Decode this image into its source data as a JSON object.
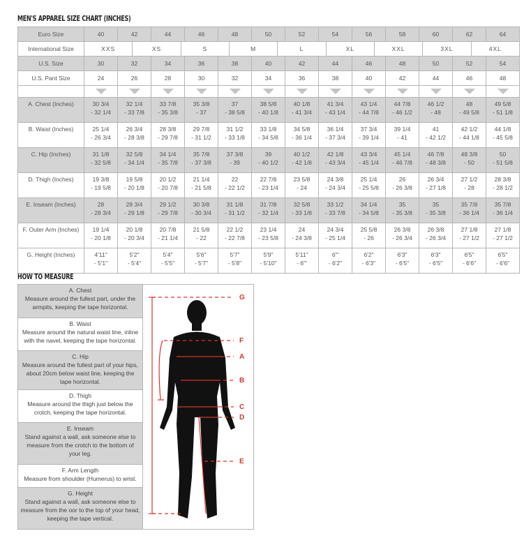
{
  "size_chart": {
    "title": "MEN'S APPAREL SIZE CHART (INCHES)",
    "euro": {
      "label": "Euro Size",
      "values": [
        "40",
        "42",
        "44",
        "46",
        "48",
        "50",
        "52",
        "54",
        "56",
        "58",
        "60",
        "62",
        "64"
      ]
    },
    "international": {
      "label": "International Size",
      "values": [
        "XXS",
        "XS",
        "S",
        "M",
        "L",
        "XL",
        "XXL",
        "3XL",
        "4XL"
      ]
    },
    "us": {
      "label": "U.S. Size",
      "values": [
        "30",
        "32",
        "34",
        "36",
        "38",
        "40",
        "42",
        "44",
        "46",
        "48",
        "50",
        "52",
        "54"
      ]
    },
    "us_pant": {
      "label": "U.S. Pant Size",
      "values": [
        "24",
        "26",
        "28",
        "30",
        "32",
        "34",
        "36",
        "38",
        "40",
        "42",
        "44",
        "46",
        "48"
      ]
    },
    "measurements": [
      {
        "label": "A. Chest (Inches)",
        "values": [
          [
            "30 3/4",
            "- 32 1/4"
          ],
          [
            "32 1/4",
            "- 33 7/8"
          ],
          [
            "33 7/8",
            "- 35 3/8"
          ],
          [
            "35 3/8",
            "- 37"
          ],
          [
            "37",
            "- 38 5/8"
          ],
          [
            "38 5/8",
            "- 40 1/8"
          ],
          [
            "40 1/8",
            "- 41 3/4"
          ],
          [
            "41 3/4",
            "- 43 1/4"
          ],
          [
            "43 1/4",
            "- 44 7/8"
          ],
          [
            "44 7/8",
            "- 46 1/2"
          ],
          [
            "46 1/2",
            "- 48"
          ],
          [
            "48",
            "- 49 5/8"
          ],
          [
            "49 5/8",
            "- 51 1/8"
          ]
        ]
      },
      {
        "label": "B. Waist (Inches)",
        "values": [
          [
            "25 1/4",
            "- 26 3/4"
          ],
          [
            "26 3/4",
            "- 28 3/8"
          ],
          [
            "28 3/8",
            "- 29 7/8"
          ],
          [
            "29 7/8",
            "- 31 1/2"
          ],
          [
            "31 1/2",
            "- 33 1/8"
          ],
          [
            "33 1/8",
            "- 34 5/8"
          ],
          [
            "34 5/8",
            "- 36 1/4"
          ],
          [
            "36 1/4",
            "- 37 3/4"
          ],
          [
            "37 3/4",
            "- 39 1/4"
          ],
          [
            "39 1/4",
            "- 41"
          ],
          [
            "41",
            "- 42 1/2"
          ],
          [
            "42 1/2",
            "- 44 1/8"
          ],
          [
            "44 1/8",
            "- 45 5/8"
          ]
        ]
      },
      {
        "label": "C. Hip (Inches)",
        "values": [
          [
            "31 1/8",
            "- 32 5/8"
          ],
          [
            "32 5/8",
            "- 34 1/4"
          ],
          [
            "34 1/4",
            "- 35 7/8"
          ],
          [
            "35 7/8",
            "- 37 3/8"
          ],
          [
            "37 3/8",
            "- 39"
          ],
          [
            "39",
            "- 40 1/2"
          ],
          [
            "40 1/2",
            "- 42 1/8"
          ],
          [
            "42 1/8",
            "- 43 3/4"
          ],
          [
            "43 3/4",
            "- 45 1/4"
          ],
          [
            "45 1/4",
            "- 46 7/8"
          ],
          [
            "46 7/8",
            "- 48 3/8"
          ],
          [
            "48 3/8",
            "- 50"
          ],
          [
            "50",
            "- 51 5/8"
          ]
        ]
      },
      {
        "label": "D. Thigh (Inches)",
        "values": [
          [
            "19 3/8",
            "- 19 5/8"
          ],
          [
            "19 5/8",
            "- 20 1/8"
          ],
          [
            "20 1/2",
            "- 20 7/8"
          ],
          [
            "21 1/4",
            "- 21 5/8"
          ],
          [
            "22",
            "- 22 1/2"
          ],
          [
            "22 7/8",
            "- 23 1/4"
          ],
          [
            "23 5/8",
            "- 24"
          ],
          [
            "24 3/8",
            "- 24 3/4"
          ],
          [
            "25 1/4",
            "- 25 5/8"
          ],
          [
            "26",
            "- 26 3/8"
          ],
          [
            "26 3/4",
            "- 27 1/8"
          ],
          [
            "27 1/2",
            "- 28"
          ],
          [
            "28 3/8",
            "- 28 1/2"
          ]
        ]
      },
      {
        "label": "E. Inseam (Inches)",
        "values": [
          [
            "28",
            "- 28 3/4"
          ],
          [
            "28 3/4",
            "- 29 1/8"
          ],
          [
            "29 1/2",
            "- 29 7/8"
          ],
          [
            "30 3/8",
            "- 30 3/4"
          ],
          [
            "31 1/8",
            "- 31 1/2"
          ],
          [
            "31 7/8",
            "- 32 1/4"
          ],
          [
            "32 5/8",
            "- 33 1/8"
          ],
          [
            "33 1/2",
            "- 33 7/8"
          ],
          [
            "34 1/4",
            "- 34 5/8"
          ],
          [
            "35",
            "- 35 3/8"
          ],
          [
            "35",
            "- 35 3/8"
          ],
          [
            "35 7/8",
            "- 36 1/4"
          ],
          [
            "35 7/8",
            "- 36 1/4"
          ]
        ]
      },
      {
        "label": "F. Outer Arm (Inches)",
        "values": [
          [
            "19 1/4",
            "- 20 1/8"
          ],
          [
            "20 1/8",
            "- 20 3/4"
          ],
          [
            "20 7/8",
            "- 21 1/4"
          ],
          [
            "21 5/8",
            "- 22"
          ],
          [
            "22 1/2",
            "- 22 7/8"
          ],
          [
            "23 1/4",
            "- 23 5/8"
          ],
          [
            "24",
            "- 24 3/8"
          ],
          [
            "24 3/4",
            "- 25 1/4"
          ],
          [
            "25 5/8",
            "- 26"
          ],
          [
            "26 3/8",
            "- 26 3/4"
          ],
          [
            "26 3/8",
            "- 26 3/4"
          ],
          [
            "27 1/8",
            "- 27 1/2"
          ],
          [
            "27 1/8",
            "- 27 1/2"
          ]
        ]
      },
      {
        "label": "G. Height (Inches)",
        "values": [
          [
            "4'11\"",
            "- 5'1\""
          ],
          [
            "5'2\"",
            "- 5'4\""
          ],
          [
            "5'4\"",
            "- 5'5\""
          ],
          [
            "5'6\"",
            "- 5'7\""
          ],
          [
            "5'7\"",
            "- 5'8\""
          ],
          [
            "5'9\"",
            "- 5'10\""
          ],
          [
            "5'11\"",
            "- 6'\""
          ],
          [
            "6'\"",
            "- 6'2\""
          ],
          [
            "6'2\"",
            "- 6'3\""
          ],
          [
            "6'3\"",
            "- 6'5\""
          ],
          [
            "6'3\"",
            "- 6'5\""
          ],
          [
            "6'5\"",
            "- 6'6\""
          ],
          [
            "6'5\"",
            "- 6'6\""
          ]
        ]
      }
    ]
  },
  "how_to_measure": {
    "title": "HOW TO MEASURE",
    "items": [
      {
        "title": "A. Chest",
        "text": "Measure around the fullest part, under the armpits, keeping the tape horizontal."
      },
      {
        "title": "B. Waist",
        "text": "Measure around the natural waist line, inline with the navel, keeping the tape horizontal."
      },
      {
        "title": "C. Hip",
        "text": "Measure around the fullest part of your hips, about 20cm below waist line, keeping the tape horizontal."
      },
      {
        "title": "D. Thigh",
        "text": "Measure around the thigh just below the crotch, keeping the tape horizontal."
      },
      {
        "title": "E. Inseam",
        "text": "Stand against a wall, ask someone else to measure from the crotch to the bottom of your leg."
      },
      {
        "title": "F. Arm Length",
        "text": "Measure from shoulder (Humerus) to wrist."
      },
      {
        "title": "G. Height",
        "text": "Stand against a wall, ask someone else to measure from the oor to the top of your head, keeping the tape vertical."
      }
    ],
    "figure_labels": [
      "G",
      "F",
      "A",
      "B",
      "C",
      "D",
      "E"
    ],
    "line_color": "#d9342b"
  }
}
